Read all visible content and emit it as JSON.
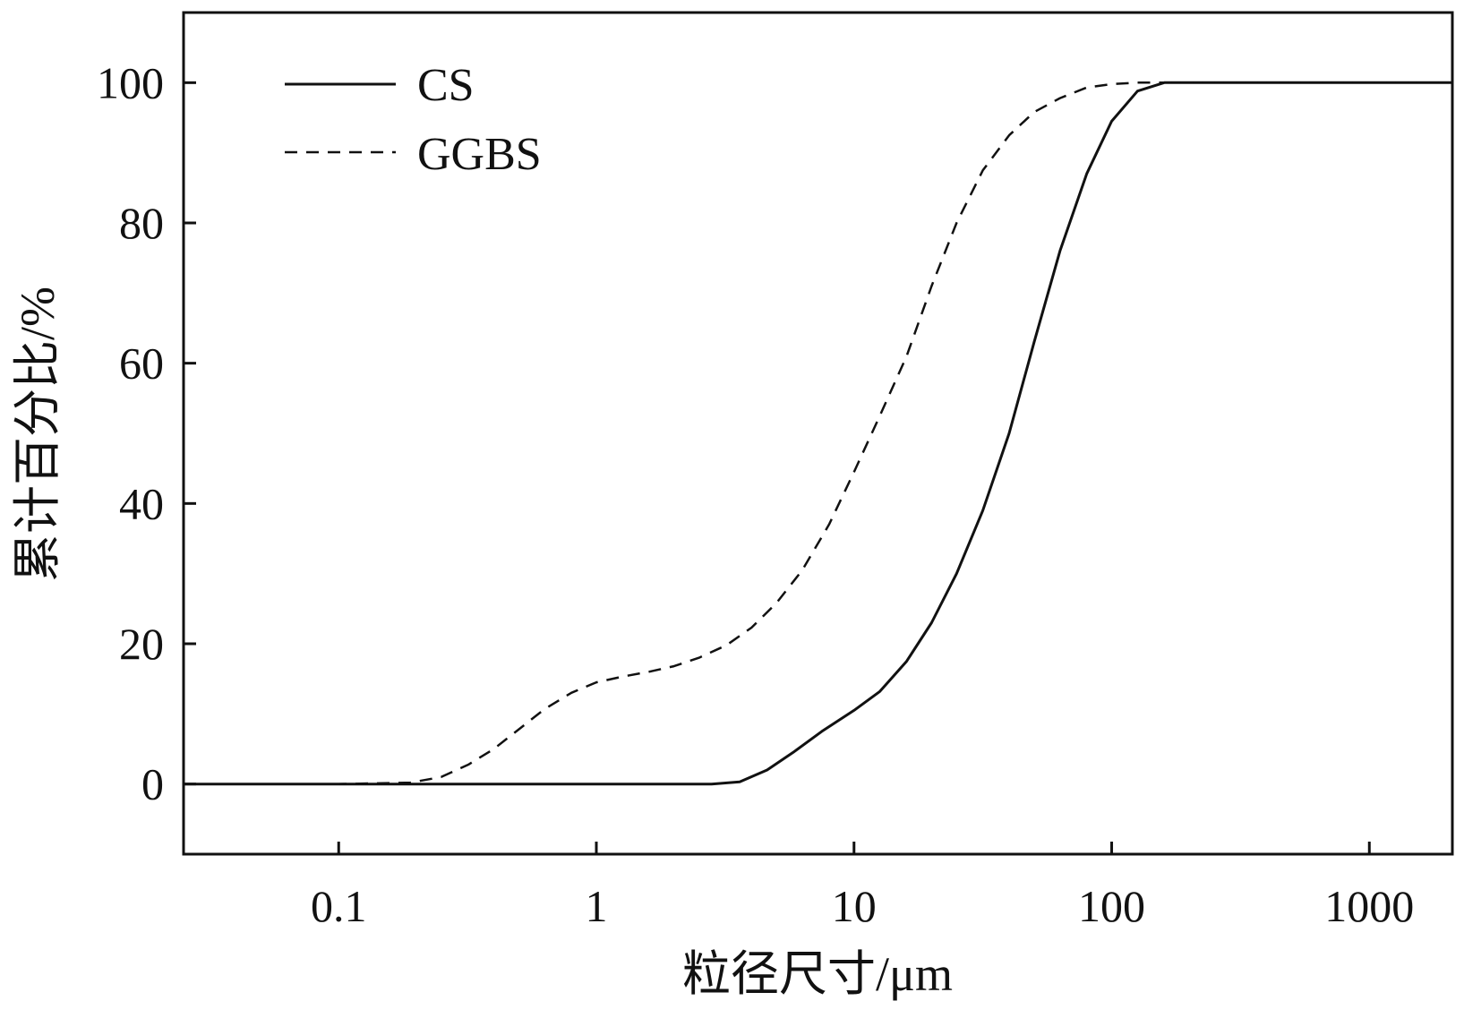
{
  "chart_data": {
    "type": "line",
    "title": "",
    "xlabel": "粒径尺寸/μm",
    "ylabel": "累计百分比/%",
    "xscale": "log",
    "xlim": [
      0.025,
      2100
    ],
    "ylim": [
      -10,
      110
    ],
    "xticks": [
      {
        "value": 0.1,
        "label": "0.1"
      },
      {
        "value": 1,
        "label": "1"
      },
      {
        "value": 10,
        "label": "10"
      },
      {
        "value": 100,
        "label": "100"
      },
      {
        "value": 1000,
        "label": "1000"
      }
    ],
    "yticks": [
      {
        "value": 0,
        "label": "0"
      },
      {
        "value": 20,
        "label": "20"
      },
      {
        "value": 40,
        "label": "40"
      },
      {
        "value": 60,
        "label": "60"
      },
      {
        "value": 80,
        "label": "80"
      },
      {
        "value": 100,
        "label": "100"
      }
    ],
    "grid": false,
    "legend_position": "top-left",
    "series": [
      {
        "name": "CS",
        "style": "solid",
        "points": [
          [
            0.025,
            0
          ],
          [
            0.1,
            0
          ],
          [
            1,
            0
          ],
          [
            2.8,
            0
          ],
          [
            3.6,
            0.3
          ],
          [
            4.6,
            2
          ],
          [
            5.8,
            4.5
          ],
          [
            7.5,
            7.5
          ],
          [
            10,
            10.5
          ],
          [
            12.6,
            13.2
          ],
          [
            16,
            17.5
          ],
          [
            20,
            23
          ],
          [
            25,
            30
          ],
          [
            31.6,
            39
          ],
          [
            40,
            50
          ],
          [
            50,
            63
          ],
          [
            63,
            76
          ],
          [
            80,
            87
          ],
          [
            100,
            94.5
          ],
          [
            126,
            98.8
          ],
          [
            160,
            100
          ],
          [
            300,
            100
          ],
          [
            2100,
            100
          ]
        ]
      },
      {
        "name": "GGBS",
        "style": "dashed",
        "points": [
          [
            0.025,
            0
          ],
          [
            0.1,
            0
          ],
          [
            0.19,
            0.2
          ],
          [
            0.25,
            1
          ],
          [
            0.32,
            2.8
          ],
          [
            0.4,
            5
          ],
          [
            0.5,
            7.8
          ],
          [
            0.63,
            10.7
          ],
          [
            0.8,
            13
          ],
          [
            1,
            14.5
          ],
          [
            1.26,
            15.3
          ],
          [
            1.6,
            16
          ],
          [
            2,
            16.8
          ],
          [
            2.5,
            18
          ],
          [
            3.2,
            19.8
          ],
          [
            4,
            22.3
          ],
          [
            5,
            25.8
          ],
          [
            6.3,
            30.5
          ],
          [
            8,
            37
          ],
          [
            10,
            44.5
          ],
          [
            12.6,
            52.5
          ],
          [
            16,
            61
          ],
          [
            20,
            71
          ],
          [
            25,
            80
          ],
          [
            31.6,
            87.5
          ],
          [
            40,
            92.5
          ],
          [
            50,
            95.8
          ],
          [
            63,
            97.8
          ],
          [
            80,
            99.3
          ],
          [
            100,
            99.8
          ],
          [
            126,
            100
          ],
          [
            2100,
            100
          ]
        ]
      }
    ]
  }
}
